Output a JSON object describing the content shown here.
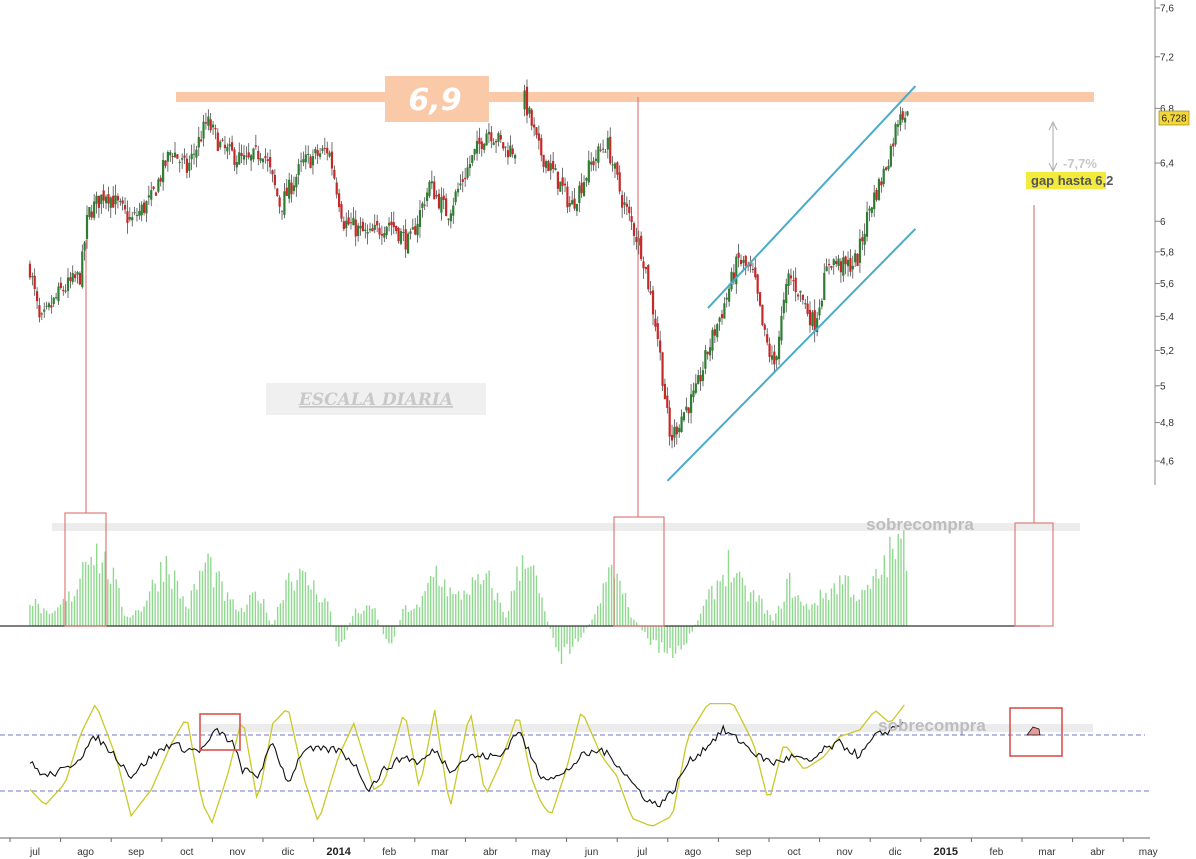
{
  "chart_data": [
    {
      "type": "candlestick",
      "panel": "price",
      "title": "",
      "xlabel": "",
      "ylabel": "",
      "y_scale": "log",
      "ylim": [
        4.45,
        7.65
      ],
      "y_ticks": [
        {
          "v": 4.6,
          "label": "4,6"
        },
        {
          "v": 4.8,
          "label": "4,8"
        },
        {
          "v": 5.0,
          "label": "5"
        },
        {
          "v": 5.2,
          "label": "5,2"
        },
        {
          "v": 5.4,
          "label": "5,4"
        },
        {
          "v": 5.6,
          "label": "5,6"
        },
        {
          "v": 5.8,
          "label": "5,8"
        },
        {
          "v": 6.0,
          "label": "6"
        },
        {
          "v": 6.4,
          "label": "6,4"
        },
        {
          "v": 6.8,
          "label": "6,8"
        },
        {
          "v": 7.2,
          "label": "7,2"
        },
        {
          "v": 7.6,
          "label": "7,6"
        }
      ],
      "last_price": {
        "value": 6.728,
        "label": "6,728"
      },
      "approx_close_path": [
        {
          "m": -0.1,
          "p": 5.7
        },
        {
          "m": 0.1,
          "p": 5.35
        },
        {
          "m": 0.5,
          "p": 5.55
        },
        {
          "m": 0.9,
          "p": 5.65
        },
        {
          "m": 1.05,
          "p": 6.05
        },
        {
          "m": 1.4,
          "p": 6.2
        },
        {
          "m": 1.9,
          "p": 6.0
        },
        {
          "m": 2.3,
          "p": 6.15
        },
        {
          "m": 2.7,
          "p": 6.5
        },
        {
          "m": 3.0,
          "p": 6.35
        },
        {
          "m": 3.4,
          "p": 6.7
        },
        {
          "m": 3.7,
          "p": 6.5
        },
        {
          "m": 4.2,
          "p": 6.4
        },
        {
          "m": 4.5,
          "p": 6.5
        },
        {
          "m": 4.85,
          "p": 6.1
        },
        {
          "m": 5.3,
          "p": 6.4
        },
        {
          "m": 5.8,
          "p": 6.5
        },
        {
          "m": 6.1,
          "p": 6.0
        },
        {
          "m": 6.6,
          "p": 5.9
        },
        {
          "m": 7.0,
          "p": 6.0
        },
        {
          "m": 7.4,
          "p": 5.85
        },
        {
          "m": 7.8,
          "p": 6.25
        },
        {
          "m": 8.15,
          "p": 6.05
        },
        {
          "m": 8.6,
          "p": 6.4
        },
        {
          "m": 8.95,
          "p": 6.65
        },
        {
          "m": 9.3,
          "p": 6.5
        },
        {
          "m": 9.55,
          "p": 6.5
        },
        {
          "m": 9.65,
          "p": 6.9
        },
        {
          "m": 9.95,
          "p": 6.5
        },
        {
          "m": 10.3,
          "p": 6.3
        },
        {
          "m": 10.6,
          "p": 6.1
        },
        {
          "m": 11.0,
          "p": 6.4
        },
        {
          "m": 11.3,
          "p": 6.55
        },
        {
          "m": 11.6,
          "p": 6.15
        },
        {
          "m": 12.0,
          "p": 5.8
        },
        {
          "m": 12.3,
          "p": 5.3
        },
        {
          "m": 12.55,
          "p": 4.7
        },
        {
          "m": 12.8,
          "p": 4.85
        },
        {
          "m": 13.05,
          "p": 4.95
        },
        {
          "m": 13.3,
          "p": 5.2
        },
        {
          "m": 13.6,
          "p": 5.45
        },
        {
          "m": 13.9,
          "p": 5.75
        },
        {
          "m": 14.2,
          "p": 5.65
        },
        {
          "m": 14.4,
          "p": 5.3
        },
        {
          "m": 14.6,
          "p": 5.1
        },
        {
          "m": 14.9,
          "p": 5.65
        },
        {
          "m": 15.1,
          "p": 5.55
        },
        {
          "m": 15.4,
          "p": 5.35
        },
        {
          "m": 15.7,
          "p": 5.75
        },
        {
          "m": 16.0,
          "p": 5.7
        },
        {
          "m": 16.25,
          "p": 5.75
        },
        {
          "m": 16.5,
          "p": 6.1
        },
        {
          "m": 16.75,
          "p": 6.3
        },
        {
          "m": 16.95,
          "p": 6.55
        },
        {
          "m": 17.1,
          "p": 6.8
        },
        {
          "m": 17.25,
          "p": 6.73
        }
      ],
      "resistance": {
        "value": 6.9,
        "label": "6,9"
      },
      "channel_upper": [
        {
          "m": 13.3,
          "p": 5.45
        },
        {
          "m": 17.4,
          "p": 6.97
        }
      ],
      "channel_lower": [
        {
          "m": 12.5,
          "p": 4.5
        },
        {
          "m": 17.4,
          "p": 5.95
        }
      ],
      "annotations": {
        "scale": "ESCALA DIARIA",
        "drop_pct": "-7,7%",
        "gap_label": "gap hasta 6,2"
      }
    },
    {
      "type": "bar",
      "panel": "histogram",
      "title": "",
      "ylim": [
        -1.0,
        1.0
      ],
      "overbought_label": "sobrecompra",
      "approx_envelope": [
        {
          "m": -0.1,
          "v": 0.3
        },
        {
          "m": 0.3,
          "v": 0.1
        },
        {
          "m": 0.8,
          "v": 0.4
        },
        {
          "m": 1.05,
          "v": 0.95
        },
        {
          "m": 1.5,
          "v": 0.6
        },
        {
          "m": 1.8,
          "v": 0.1
        },
        {
          "m": 2.1,
          "v": 0.2
        },
        {
          "m": 2.6,
          "v": 0.75
        },
        {
          "m": 3.0,
          "v": 0.2
        },
        {
          "m": 3.4,
          "v": 0.75
        },
        {
          "m": 3.8,
          "v": 0.3
        },
        {
          "m": 4.1,
          "v": 0.15
        },
        {
          "m": 4.4,
          "v": 0.4
        },
        {
          "m": 4.7,
          "v": 0.0
        },
        {
          "m": 5.0,
          "v": 0.6
        },
        {
          "m": 5.4,
          "v": 0.5
        },
        {
          "m": 5.8,
          "v": 0.25
        },
        {
          "m": 6.0,
          "v": -0.3
        },
        {
          "m": 6.3,
          "v": 0.15
        },
        {
          "m": 6.7,
          "v": 0.2
        },
        {
          "m": 7.0,
          "v": -0.25
        },
        {
          "m": 7.3,
          "v": 0.2
        },
        {
          "m": 7.6,
          "v": 0.2
        },
        {
          "m": 7.9,
          "v": 0.65
        },
        {
          "m": 8.3,
          "v": 0.3
        },
        {
          "m": 8.6,
          "v": 0.45
        },
        {
          "m": 9.0,
          "v": 0.5
        },
        {
          "m": 9.3,
          "v": 0.1
        },
        {
          "m": 9.7,
          "v": 0.9
        },
        {
          "m": 10.1,
          "v": 0.1
        },
        {
          "m": 10.4,
          "v": -0.35
        },
        {
          "m": 10.8,
          "v": -0.1
        },
        {
          "m": 11.1,
          "v": 0.15
        },
        {
          "m": 11.4,
          "v": 0.7
        },
        {
          "m": 11.8,
          "v": 0.1
        },
        {
          "m": 12.2,
          "v": -0.2
        },
        {
          "m": 12.6,
          "v": -0.35
        },
        {
          "m": 12.9,
          "v": -0.15
        },
        {
          "m": 13.3,
          "v": 0.3
        },
        {
          "m": 13.7,
          "v": 0.7
        },
        {
          "m": 14.0,
          "v": 0.4
        },
        {
          "m": 14.3,
          "v": 0.3
        },
        {
          "m": 14.6,
          "v": 0.05
        },
        {
          "m": 14.9,
          "v": 0.5
        },
        {
          "m": 15.2,
          "v": 0.2
        },
        {
          "m": 15.6,
          "v": 0.35
        },
        {
          "m": 16.0,
          "v": 0.55
        },
        {
          "m": 16.3,
          "v": 0.3
        },
        {
          "m": 16.6,
          "v": 0.5
        },
        {
          "m": 16.9,
          "v": 0.8
        },
        {
          "m": 17.15,
          "v": 0.9
        },
        {
          "m": 17.25,
          "v": 0.85
        }
      ]
    },
    {
      "type": "line",
      "panel": "oscillator",
      "title": "",
      "ylim": [
        0,
        100
      ],
      "overbought_label": "sobrecompra",
      "levels": [
        75,
        25
      ],
      "series": [
        {
          "color": "#c9c92a",
          "points": [
            {
              "m": -0.1,
              "v": 30
            },
            {
              "m": 0.2,
              "v": 18
            },
            {
              "m": 0.6,
              "v": 35
            },
            {
              "m": 0.9,
              "v": 72
            },
            {
              "m": 1.2,
              "v": 95
            },
            {
              "m": 1.6,
              "v": 55
            },
            {
              "m": 1.9,
              "v": 10
            },
            {
              "m": 2.3,
              "v": 30
            },
            {
              "m": 2.7,
              "v": 65
            },
            {
              "m": 3.0,
              "v": 85
            },
            {
              "m": 3.3,
              "v": 20
            },
            {
              "m": 3.5,
              "v": 5
            },
            {
              "m": 3.8,
              "v": 40
            },
            {
              "m": 4.1,
              "v": 85
            },
            {
              "m": 4.4,
              "v": 20
            },
            {
              "m": 4.7,
              "v": 80
            },
            {
              "m": 5.0,
              "v": 92
            },
            {
              "m": 5.3,
              "v": 40
            },
            {
              "m": 5.6,
              "v": 5
            },
            {
              "m": 6.0,
              "v": 55
            },
            {
              "m": 6.3,
              "v": 80
            },
            {
              "m": 6.7,
              "v": 30
            },
            {
              "m": 6.9,
              "v": 35
            },
            {
              "m": 7.3,
              "v": 90
            },
            {
              "m": 7.6,
              "v": 30
            },
            {
              "m": 7.9,
              "v": 90
            },
            {
              "m": 8.2,
              "v": 15
            },
            {
              "m": 8.6,
              "v": 90
            },
            {
              "m": 8.9,
              "v": 25
            },
            {
              "m": 9.2,
              "v": 50
            },
            {
              "m": 9.55,
              "v": 88
            },
            {
              "m": 9.8,
              "v": 40
            },
            {
              "m": 10.0,
              "v": 20
            },
            {
              "m": 10.2,
              "v": 10
            },
            {
              "m": 10.5,
              "v": 45
            },
            {
              "m": 10.8,
              "v": 90
            },
            {
              "m": 11.2,
              "v": 55
            },
            {
              "m": 11.5,
              "v": 40
            },
            {
              "m": 11.8,
              "v": 8
            },
            {
              "m": 12.2,
              "v": 2
            },
            {
              "m": 12.6,
              "v": 10
            },
            {
              "m": 12.9,
              "v": 70
            },
            {
              "m": 13.3,
              "v": 95
            },
            {
              "m": 13.8,
              "v": 95
            },
            {
              "m": 14.2,
              "v": 65
            },
            {
              "m": 14.5,
              "v": 20
            },
            {
              "m": 14.8,
              "v": 65
            },
            {
              "m": 15.2,
              "v": 45
            },
            {
              "m": 15.6,
              "v": 55
            },
            {
              "m": 15.9,
              "v": 70
            },
            {
              "m": 16.3,
              "v": 75
            },
            {
              "m": 16.6,
              "v": 90
            },
            {
              "m": 16.9,
              "v": 80
            },
            {
              "m": 17.2,
              "v": 95
            }
          ]
        },
        {
          "color": "#111111",
          "points": [
            {
              "m": -0.1,
              "v": 50
            },
            {
              "m": 0.2,
              "v": 40
            },
            {
              "m": 0.6,
              "v": 45
            },
            {
              "m": 0.9,
              "v": 55
            },
            {
              "m": 1.2,
              "v": 70
            },
            {
              "m": 1.6,
              "v": 55
            },
            {
              "m": 1.9,
              "v": 40
            },
            {
              "m": 2.3,
              "v": 55
            },
            {
              "m": 2.7,
              "v": 65
            },
            {
              "m": 3.0,
              "v": 60
            },
            {
              "m": 3.3,
              "v": 60
            },
            {
              "m": 3.6,
              "v": 75
            },
            {
              "m": 3.9,
              "v": 65
            },
            {
              "m": 4.1,
              "v": 45
            },
            {
              "m": 4.4,
              "v": 40
            },
            {
              "m": 4.7,
              "v": 65
            },
            {
              "m": 5.0,
              "v": 35
            },
            {
              "m": 5.3,
              "v": 60
            },
            {
              "m": 5.6,
              "v": 60
            },
            {
              "m": 6.0,
              "v": 60
            },
            {
              "m": 6.3,
              "v": 50
            },
            {
              "m": 6.6,
              "v": 30
            },
            {
              "m": 6.9,
              "v": 45
            },
            {
              "m": 7.3,
              "v": 55
            },
            {
              "m": 7.6,
              "v": 50
            },
            {
              "m": 7.9,
              "v": 60
            },
            {
              "m": 8.2,
              "v": 45
            },
            {
              "m": 8.6,
              "v": 55
            },
            {
              "m": 8.9,
              "v": 55
            },
            {
              "m": 9.2,
              "v": 55
            },
            {
              "m": 9.55,
              "v": 75
            },
            {
              "m": 9.8,
              "v": 55
            },
            {
              "m": 10.0,
              "v": 40
            },
            {
              "m": 10.4,
              "v": 40
            },
            {
              "m": 10.8,
              "v": 55
            },
            {
              "m": 11.2,
              "v": 60
            },
            {
              "m": 11.5,
              "v": 50
            },
            {
              "m": 11.8,
              "v": 35
            },
            {
              "m": 12.1,
              "v": 22
            },
            {
              "m": 12.3,
              "v": 18
            },
            {
              "m": 12.6,
              "v": 28
            },
            {
              "m": 12.9,
              "v": 50
            },
            {
              "m": 13.2,
              "v": 60
            },
            {
              "m": 13.6,
              "v": 75
            },
            {
              "m": 14.0,
              "v": 65
            },
            {
              "m": 14.3,
              "v": 55
            },
            {
              "m": 14.6,
              "v": 50
            },
            {
              "m": 15.0,
              "v": 55
            },
            {
              "m": 15.3,
              "v": 50
            },
            {
              "m": 15.6,
              "v": 60
            },
            {
              "m": 15.9,
              "v": 65
            },
            {
              "m": 16.3,
              "v": 55
            },
            {
              "m": 16.6,
              "v": 70
            },
            {
              "m": 16.9,
              "v": 75
            },
            {
              "m": 17.2,
              "v": 82
            }
          ]
        }
      ]
    }
  ],
  "x_axis": {
    "months": [
      {
        "m": 0.0,
        "label": "jul"
      },
      {
        "m": 1.0,
        "label": "ago"
      },
      {
        "m": 2.0,
        "label": "sep"
      },
      {
        "m": 3.0,
        "label": "oct"
      },
      {
        "m": 4.0,
        "label": "nov"
      },
      {
        "m": 5.0,
        "label": "dic"
      },
      {
        "m": 6.0,
        "label": "2014",
        "year": true
      },
      {
        "m": 7.0,
        "label": "feb"
      },
      {
        "m": 8.0,
        "label": "mar"
      },
      {
        "m": 9.0,
        "label": "abr"
      },
      {
        "m": 10.0,
        "label": "may"
      },
      {
        "m": 11.0,
        "label": "jun"
      },
      {
        "m": 12.0,
        "label": "jul"
      },
      {
        "m": 13.0,
        "label": "ago"
      },
      {
        "m": 14.0,
        "label": "sep"
      },
      {
        "m": 15.0,
        "label": "oct"
      },
      {
        "m": 16.0,
        "label": "nov"
      },
      {
        "m": 17.0,
        "label": "dic"
      },
      {
        "m": 18.0,
        "label": "2015",
        "year": true
      },
      {
        "m": 19.0,
        "label": "feb"
      },
      {
        "m": 20.0,
        "label": "mar"
      },
      {
        "m": 21.0,
        "label": "abr"
      },
      {
        "m": 22.0,
        "label": "may"
      }
    ]
  },
  "colors": {
    "bull_candle": "#2e7d32",
    "bear_candle": "#c62828",
    "resistance_band": "#f9c9a8",
    "channel": "#4aacc7",
    "histogram": "#8fd98f",
    "markers": "#e07b7b",
    "oscillator_levels": "#6f74c9"
  }
}
